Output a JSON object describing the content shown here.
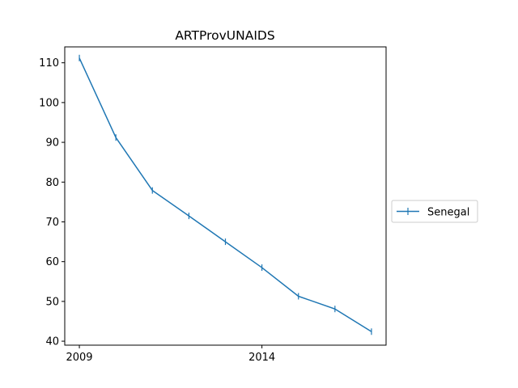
{
  "chart_data": {
    "type": "line",
    "title": "ARTProvUNAIDS",
    "xlabel": "",
    "ylabel": "",
    "x": [
      2009,
      2010,
      2011,
      2012,
      2013,
      2014,
      2015,
      2016,
      2017
    ],
    "series": [
      {
        "name": "Senegal",
        "color": "#1f77b4",
        "marker": "vertical-tick",
        "values": [
          111.2,
          91.2,
          77.9,
          71.5,
          65.0,
          58.5,
          51.3,
          48.1,
          42.4
        ]
      }
    ],
    "xlim": [
      2008.6,
      2017.4
    ],
    "ylim": [
      39.0,
      114.0
    ],
    "xticks": [
      2009,
      2014
    ],
    "yticks": [
      40,
      50,
      60,
      70,
      80,
      90,
      100,
      110
    ],
    "legend_position": "right-outside",
    "grid": false
  }
}
